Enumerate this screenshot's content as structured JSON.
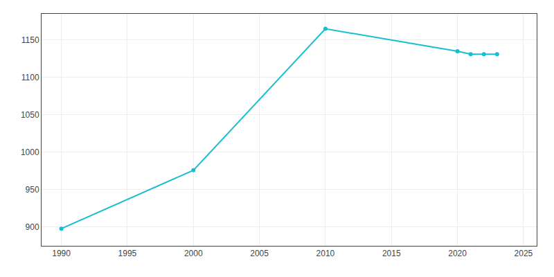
{
  "chart_data": {
    "type": "line",
    "x": [
      1990,
      2000,
      2010,
      2020,
      2021,
      2022,
      2023
    ],
    "values": [
      898,
      976,
      1165,
      1135,
      1131,
      1131,
      1131
    ],
    "color": "#17BECF",
    "marker": "circle",
    "xlim": [
      1988.5,
      2026
    ],
    "ylim": [
      875,
      1185
    ],
    "xticks": [
      1990,
      1995,
      2000,
      2005,
      2010,
      2015,
      2020,
      2025
    ],
    "yticks": [
      900,
      950,
      1000,
      1050,
      1100,
      1150
    ],
    "grid": true
  }
}
